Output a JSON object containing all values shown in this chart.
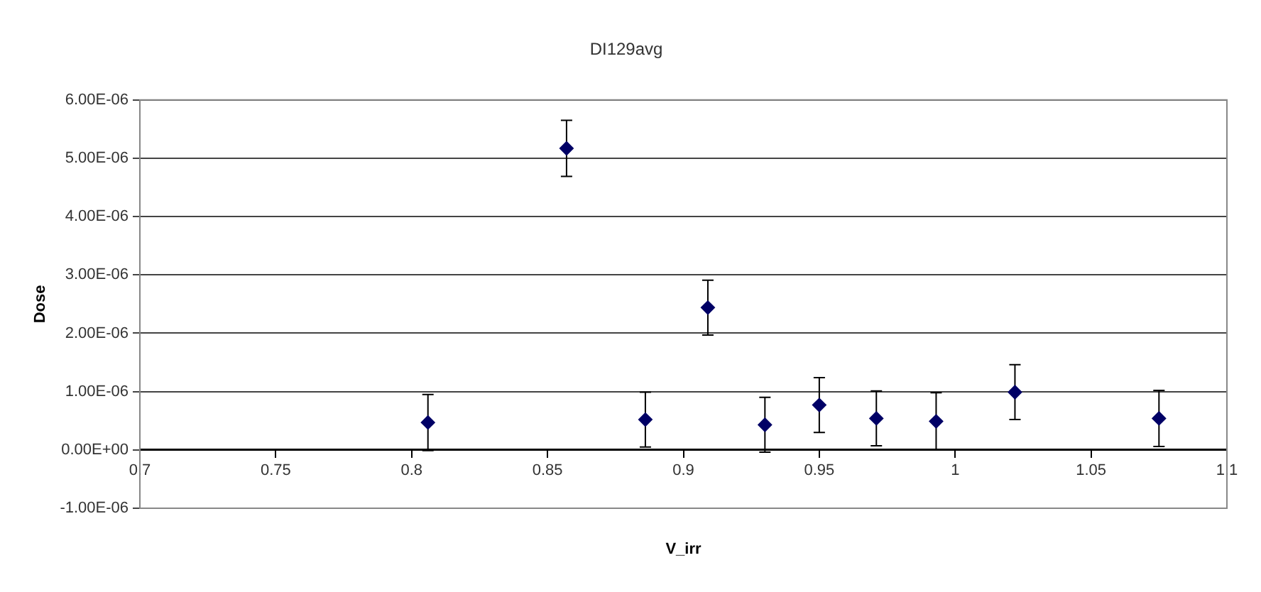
{
  "chart_data": {
    "type": "scatter",
    "title": "DI129avg",
    "xlabel": "V_irr",
    "ylabel": "Dose",
    "x": [
      0.806,
      0.857,
      0.886,
      0.909,
      0.93,
      0.95,
      0.971,
      0.993,
      1.022,
      1.075
    ],
    "series": [
      {
        "color": "#000066",
        "values": [
          4.7e-07,
          5.17e-06,
          5.2e-07,
          2.44e-06,
          4.3e-07,
          7.7e-07,
          5.4e-07,
          4.9e-07,
          9.9e-07,
          5.4e-07
        ],
        "errors": [
          4.8e-07,
          4.8e-07,
          4.7e-07,
          4.7e-07,
          4.7e-07,
          4.7e-07,
          4.7e-07,
          4.9e-07,
          4.7e-07,
          4.8e-07
        ]
      }
    ],
    "xlim": [
      0.7,
      1.1
    ],
    "xticks": [
      0.7,
      0.75,
      0.8,
      0.85,
      0.9,
      0.95,
      1,
      1.05,
      1.1
    ],
    "ylim": [
      -1e-06,
      6e-06
    ],
    "yticks": [
      {
        "value": -1e-06,
        "label": "-1.00E-06"
      },
      {
        "value": 0,
        "label": "0.00E+00"
      },
      {
        "value": 1e-06,
        "label": "1.00E-06"
      },
      {
        "value": 2e-06,
        "label": "2.00E-06"
      },
      {
        "value": 3e-06,
        "label": "3.00E-06"
      },
      {
        "value": 4e-06,
        "label": "4.00E-06"
      },
      {
        "value": 5e-06,
        "label": "5.00E-06"
      },
      {
        "value": 6e-06,
        "label": "6.00E-06"
      }
    ],
    "grid": "y",
    "legend": false,
    "marker": "diamond"
  }
}
